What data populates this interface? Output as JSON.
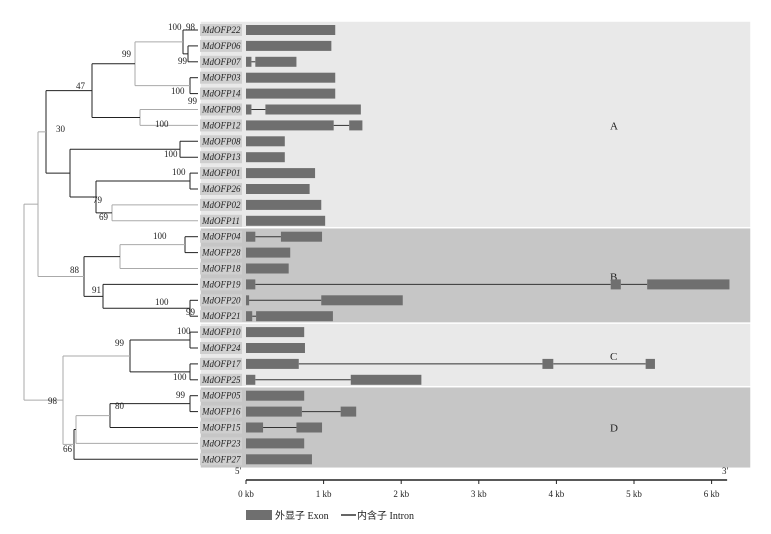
{
  "gene_prefix": "MdOFP",
  "groups": [
    {
      "label": "A",
      "color": "#e9e9e9",
      "first": 0,
      "last": 12
    },
    {
      "label": "B",
      "color": "#c6c6c6",
      "first": 13,
      "last": 18
    },
    {
      "label": "C",
      "color": "#e9e9e9",
      "first": 19,
      "last": 22
    },
    {
      "label": "D",
      "color": "#c6c6c6",
      "first": 23,
      "last": 27
    }
  ],
  "genes": [
    {
      "name": "MdOFP22",
      "exons": [
        [
          0,
          1.15
        ]
      ]
    },
    {
      "name": "MdOFP06",
      "exons": [
        [
          0,
          1.1
        ]
      ]
    },
    {
      "name": "MdOFP07",
      "exons": [
        [
          0,
          0.07
        ],
        [
          0.12,
          0.65
        ]
      ]
    },
    {
      "name": "MdOFP03",
      "exons": [
        [
          0,
          1.15
        ]
      ]
    },
    {
      "name": "MdOFP14",
      "exons": [
        [
          0,
          1.15
        ]
      ]
    },
    {
      "name": "MdOFP09",
      "exons": [
        [
          0,
          0.07
        ],
        [
          0.25,
          1.48
        ]
      ]
    },
    {
      "name": "MdOFP12",
      "exons": [
        [
          0,
          1.13
        ],
        [
          1.33,
          1.5
        ]
      ]
    },
    {
      "name": "MdOFP08",
      "exons": [
        [
          0,
          0.5
        ]
      ]
    },
    {
      "name": "MdOFP13",
      "exons": [
        [
          0,
          0.5
        ]
      ]
    },
    {
      "name": "MdOFP01",
      "exons": [
        [
          0,
          0.89
        ]
      ]
    },
    {
      "name": "MdOFP26",
      "exons": [
        [
          0,
          0.82
        ]
      ]
    },
    {
      "name": "MdOFP02",
      "exons": [
        [
          0,
          0.97
        ]
      ]
    },
    {
      "name": "MdOFP11",
      "exons": [
        [
          0,
          1.02
        ]
      ]
    },
    {
      "name": "MdOFP04",
      "exons": [
        [
          0,
          0.12
        ],
        [
          0.45,
          0.98
        ]
      ]
    },
    {
      "name": "MdOFP28",
      "exons": [
        [
          0,
          0.57
        ]
      ]
    },
    {
      "name": "MdOFP18",
      "exons": [
        [
          0,
          0.55
        ]
      ]
    },
    {
      "name": "MdOFP19",
      "exons": [
        [
          0,
          0.12
        ],
        [
          4.7,
          4.83
        ],
        [
          5.17,
          6.23
        ]
      ]
    },
    {
      "name": "MdOFP20",
      "exons": [
        [
          0,
          0.04
        ],
        [
          0.97,
          2.02
        ]
      ]
    },
    {
      "name": "MdOFP21",
      "exons": [
        [
          0,
          0.08
        ],
        [
          0.13,
          1.12
        ]
      ]
    },
    {
      "name": "MdOFP10",
      "exons": [
        [
          0,
          0.75
        ]
      ]
    },
    {
      "name": "MdOFP24",
      "exons": [
        [
          0,
          0.76
        ]
      ]
    },
    {
      "name": "MdOFP17",
      "exons": [
        [
          0,
          0.68
        ],
        [
          3.82,
          3.96
        ],
        [
          5.15,
          5.27
        ]
      ]
    },
    {
      "name": "MdOFP25",
      "exons": [
        [
          0,
          0.12
        ],
        [
          1.35,
          2.26
        ]
      ]
    },
    {
      "name": "MdOFP05",
      "exons": [
        [
          0,
          0.75
        ]
      ]
    },
    {
      "name": "MdOFP16",
      "exons": [
        [
          0,
          0.72
        ],
        [
          1.22,
          1.42
        ]
      ]
    },
    {
      "name": "MdOFP15",
      "exons": [
        [
          0,
          0.22
        ],
        [
          0.65,
          0.98
        ]
      ]
    },
    {
      "name": "MdOFP23",
      "exons": [
        [
          0,
          0.75
        ]
      ]
    },
    {
      "name": "MdOFP27",
      "exons": [
        [
          0,
          0.85
        ]
      ]
    }
  ],
  "bootstrap": [
    {
      "value": "98",
      "near": 0
    },
    {
      "value": "100",
      "near": 0
    },
    {
      "value": "99",
      "near": 2
    },
    {
      "value": "99",
      "near": 1
    },
    {
      "value": "100",
      "near": 4
    },
    {
      "value": "47",
      "near": 4
    },
    {
      "value": "99",
      "near": 5
    },
    {
      "value": "100",
      "near": 6
    },
    {
      "value": "30",
      "near": 7
    },
    {
      "value": "100",
      "near": 8
    },
    {
      "value": "100",
      "near": 9
    },
    {
      "value": "79",
      "near": 11
    },
    {
      "value": "69",
      "near": 12
    },
    {
      "value": "100",
      "near": 13
    },
    {
      "value": "88",
      "near": 15
    },
    {
      "value": "91",
      "near": 16
    },
    {
      "value": "100",
      "near": 17
    },
    {
      "value": "99",
      "near": 18
    },
    {
      "value": "100",
      "near": 19
    },
    {
      "value": "99",
      "near": 20
    },
    {
      "value": "100",
      "near": 22
    },
    {
      "value": "98",
      "near": 23
    },
    {
      "value": "99",
      "near": 23
    },
    {
      "value": "80",
      "near": 24
    },
    {
      "value": "66",
      "near": 26
    }
  ],
  "axis": {
    "start_label": "5′",
    "end_label": "3′",
    "max_kb": 6.2,
    "ticks": [
      {
        "value": 0,
        "label": "0 kb"
      },
      {
        "value": 1,
        "label": "1 kb"
      },
      {
        "value": 2,
        "label": "2 kb"
      },
      {
        "value": 3,
        "label": "3 kb"
      },
      {
        "value": 4,
        "label": "4 kb"
      },
      {
        "value": 5,
        "label": "5 kb"
      },
      {
        "value": 6,
        "label": "6 kb"
      }
    ]
  },
  "legend": {
    "exon_label": "外显子 Exon",
    "intron_label": "内含子 Intron"
  },
  "colors": {
    "exon": "#6f6f6f",
    "intron": "#333333",
    "name_box": "#cfcfcf",
    "tree_dark": "#222222",
    "tree_light": "#aaaaaa"
  }
}
